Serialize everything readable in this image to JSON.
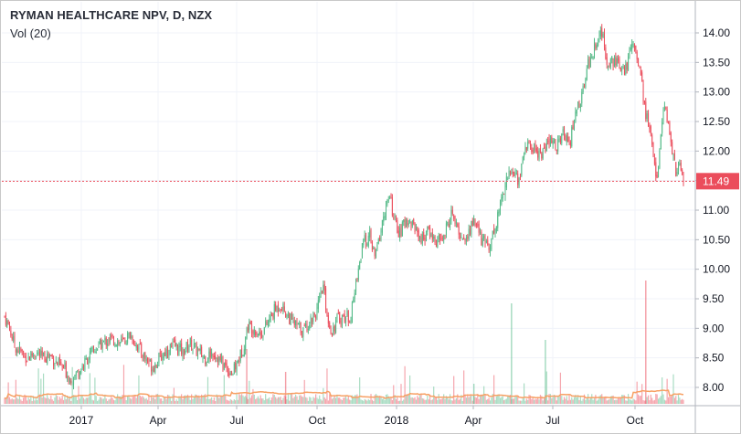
{
  "chart_data": {
    "type": "candlestick",
    "title": "RYMAN HEALTHCARE NPV, D, NZX",
    "subtitle": "Vol (20)",
    "y_ticks": [
      "8.00",
      "8.50",
      "9.00",
      "9.50",
      "10.00",
      "10.50",
      "11.00",
      "11.50",
      "12.00",
      "12.50",
      "13.00",
      "13.50",
      "14.00"
    ],
    "ylim": [
      7.8,
      14.25
    ],
    "x_ticks": [
      "2017",
      "Apr",
      "Jul",
      "Oct",
      "2018",
      "Apr",
      "Jul",
      "Oct"
    ],
    "last_price": "11.49",
    "colors": {
      "up": "#53b987",
      "down": "#eb4d5c",
      "volume_ma": "#f7a064",
      "grid": "#f0f3fa",
      "price_line": "#eb4d5c"
    },
    "series_close": [
      [
        0,
        9.2
      ],
      [
        4,
        9.0
      ],
      [
        8,
        8.7
      ],
      [
        13,
        8.6
      ],
      [
        18,
        8.5
      ],
      [
        25,
        8.6
      ],
      [
        30,
        8.5
      ],
      [
        36,
        8.55
      ],
      [
        42,
        8.4
      ],
      [
        48,
        8.3
      ],
      [
        52,
        8.15
      ],
      [
        56,
        8.2
      ],
      [
        62,
        8.35
      ],
      [
        68,
        8.55
      ],
      [
        75,
        8.7
      ],
      [
        82,
        8.8
      ],
      [
        88,
        8.8
      ],
      [
        94,
        8.75
      ],
      [
        100,
        8.9
      ],
      [
        106,
        8.7
      ],
      [
        112,
        8.5
      ],
      [
        118,
        8.35
      ],
      [
        124,
        8.5
      ],
      [
        130,
        8.65
      ],
      [
        136,
        8.7
      ],
      [
        142,
        8.6
      ],
      [
        148,
        8.75
      ],
      [
        154,
        8.6
      ],
      [
        160,
        8.5
      ],
      [
        166,
        8.6
      ],
      [
        172,
        8.45
      ],
      [
        178,
        8.3
      ],
      [
        182,
        8.25
      ],
      [
        186,
        8.45
      ],
      [
        190,
        8.65
      ],
      [
        194,
        9.05
      ],
      [
        199,
        9.0
      ],
      [
        204,
        8.9
      ],
      [
        210,
        9.1
      ],
      [
        215,
        9.3
      ],
      [
        220,
        9.4
      ],
      [
        226,
        9.2
      ],
      [
        232,
        9.05
      ],
      [
        238,
        8.95
      ],
      [
        244,
        9.15
      ],
      [
        249,
        9.3
      ],
      [
        254,
        9.7
      ],
      [
        258,
        9.1
      ],
      [
        261,
        8.95
      ],
      [
        265,
        9.15
      ],
      [
        271,
        9.2
      ],
      [
        276,
        9.2
      ],
      [
        281,
        9.9
      ],
      [
        286,
        10.45
      ],
      [
        291,
        10.55
      ],
      [
        295,
        10.2
      ],
      [
        299,
        10.55
      ],
      [
        303,
        11.0
      ],
      [
        307,
        11.2
      ],
      [
        311,
        10.8
      ],
      [
        315,
        10.6
      ],
      [
        320,
        10.85
      ],
      [
        326,
        10.75
      ],
      [
        332,
        10.5
      ],
      [
        338,
        10.65
      ],
      [
        344,
        10.45
      ],
      [
        350,
        10.55
      ],
      [
        356,
        10.95
      ],
      [
        362,
        10.6
      ],
      [
        368,
        10.5
      ],
      [
        374,
        10.85
      ],
      [
        380,
        10.5
      ],
      [
        386,
        10.4
      ],
      [
        391,
        10.7
      ],
      [
        396,
        11.2
      ],
      [
        400,
        11.55
      ],
      [
        405,
        11.65
      ],
      [
        410,
        11.5
      ],
      [
        415,
        12.1
      ],
      [
        421,
        12.05
      ],
      [
        428,
        11.95
      ],
      [
        434,
        12.15
      ],
      [
        440,
        12.1
      ],
      [
        446,
        12.3
      ],
      [
        451,
        12.2
      ],
      [
        456,
        12.75
      ],
      [
        460,
        12.9
      ],
      [
        464,
        13.45
      ],
      [
        468,
        13.6
      ],
      [
        472,
        13.9
      ],
      [
        476,
        14.0
      ],
      [
        480,
        13.5
      ],
      [
        484,
        13.55
      ],
      [
        488,
        13.5
      ],
      [
        492,
        13.3
      ],
      [
        496,
        13.45
      ],
      [
        500,
        13.9
      ],
      [
        504,
        13.65
      ],
      [
        508,
        13.1
      ],
      [
        511,
        12.6
      ],
      [
        514,
        12.4
      ],
      [
        517,
        11.9
      ],
      [
        520,
        11.55
      ],
      [
        523,
        12.3
      ],
      [
        526,
        12.75
      ],
      [
        529,
        12.4
      ],
      [
        532,
        12.05
      ],
      [
        535,
        11.65
      ],
      [
        538,
        11.75
      ],
      [
        541,
        11.49
      ]
    ]
  }
}
